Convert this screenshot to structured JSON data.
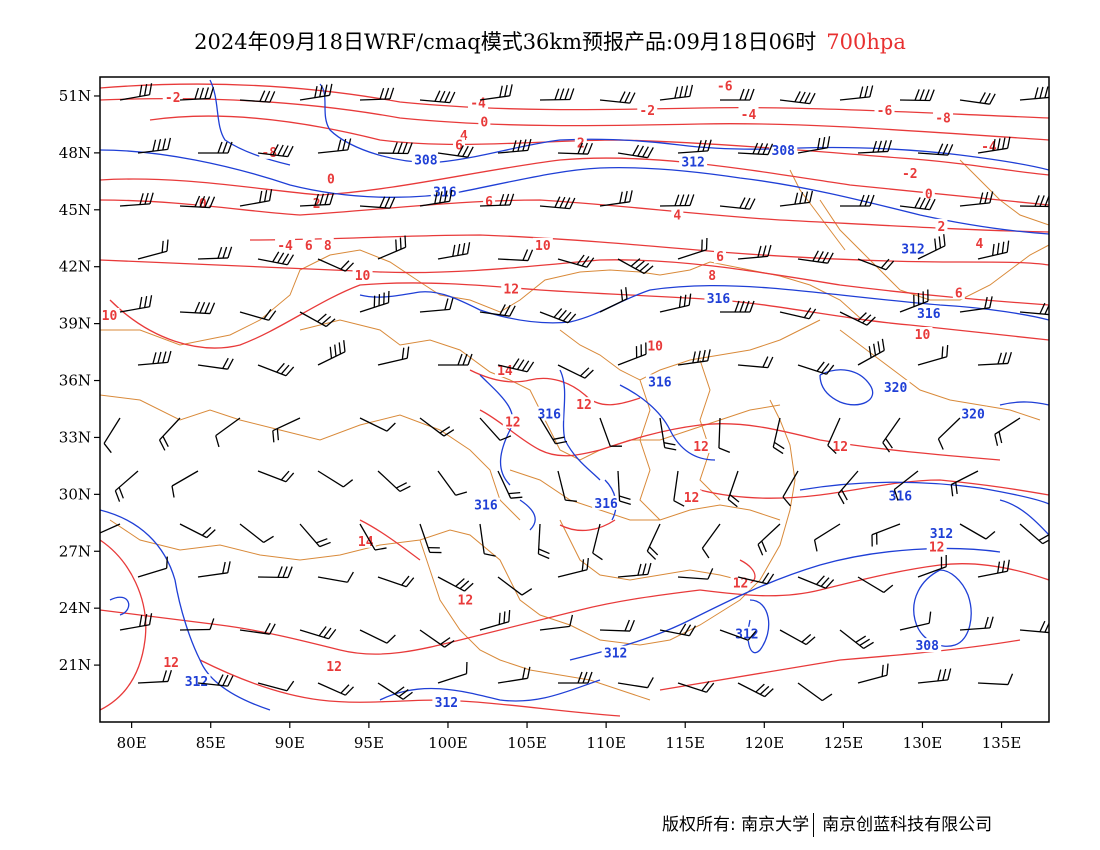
{
  "title": {
    "main": "2024年09月18日WRF/cmaq模式36km预报产品:09月18日06时",
    "level": "700hpa"
  },
  "footer": {
    "copyright": "版权所有: 南京大学",
    "company": "南京创蓝科技有限公司"
  },
  "colors": {
    "temperature_contour": "#e83a3a",
    "geopotential_contour": "#1f3fd6",
    "boundary": "#d98a3a",
    "wind_barb": "#000000",
    "level_label": "#e83030"
  },
  "chart_data": {
    "type": "map",
    "lon_range": [
      78,
      138
    ],
    "lat_range": [
      18,
      52
    ],
    "x_ticks": [
      "80E",
      "85E",
      "90E",
      "95E",
      "100E",
      "105E",
      "110E",
      "115E",
      "120E",
      "125E",
      "130E",
      "135E"
    ],
    "x_tick_values": [
      80,
      85,
      90,
      95,
      100,
      105,
      110,
      115,
      120,
      125,
      130,
      135
    ],
    "y_ticks": [
      "21N",
      "24N",
      "27N",
      "30N",
      "33N",
      "36N",
      "39N",
      "42N",
      "45N",
      "48N",
      "51N"
    ],
    "y_tick_values": [
      21,
      24,
      27,
      30,
      33,
      36,
      39,
      42,
      45,
      48,
      51
    ],
    "temperature_labels": [
      {
        "text": "-2",
        "lon": 82.6,
        "lat": 50.9
      },
      {
        "text": "-4",
        "lon": 101.9,
        "lat": 50.6
      },
      {
        "text": "-6",
        "lon": 117.5,
        "lat": 51.5
      },
      {
        "text": "-2",
        "lon": 112.6,
        "lat": 50.2
      },
      {
        "text": "-4",
        "lon": 119.0,
        "lat": 50.0
      },
      {
        "text": "-6",
        "lon": 127.6,
        "lat": 50.2
      },
      {
        "text": "-8",
        "lon": 131.3,
        "lat": 49.8
      },
      {
        "text": "0",
        "lon": 102.3,
        "lat": 49.6
      },
      {
        "text": "4",
        "lon": 101.0,
        "lat": 48.9
      },
      {
        "text": "6",
        "lon": 100.7,
        "lat": 48.4
      },
      {
        "text": "2",
        "lon": 108.4,
        "lat": 48.5
      },
      {
        "text": "-8",
        "lon": 88.7,
        "lat": 48.0
      },
      {
        "text": "-4",
        "lon": 134.2,
        "lat": 48.3
      },
      {
        "text": "-2",
        "lon": 129.2,
        "lat": 46.9
      },
      {
        "text": "0",
        "lon": 92.6,
        "lat": 46.6
      },
      {
        "text": "0",
        "lon": 84.5,
        "lat": 45.3
      },
      {
        "text": "2",
        "lon": 91.7,
        "lat": 45.3
      },
      {
        "text": "0",
        "lon": 130.4,
        "lat": 45.8
      },
      {
        "text": "6",
        "lon": 102.6,
        "lat": 45.4
      },
      {
        "text": "4",
        "lon": 114.5,
        "lat": 44.7
      },
      {
        "text": "2",
        "lon": 131.2,
        "lat": 44.1
      },
      {
        "text": "-4",
        "lon": 89.7,
        "lat": 43.1
      },
      {
        "text": "6",
        "lon": 91.2,
        "lat": 43.1
      },
      {
        "text": "8",
        "lon": 92.4,
        "lat": 43.1
      },
      {
        "text": "4",
        "lon": 133.6,
        "lat": 43.2
      },
      {
        "text": "10",
        "lon": 106.0,
        "lat": 43.1
      },
      {
        "text": "6",
        "lon": 117.2,
        "lat": 42.5
      },
      {
        "text": "8",
        "lon": 116.7,
        "lat": 41.5
      },
      {
        "text": "10",
        "lon": 94.6,
        "lat": 41.5
      },
      {
        "text": "12",
        "lon": 104.0,
        "lat": 40.8
      },
      {
        "text": "6",
        "lon": 132.3,
        "lat": 40.6
      },
      {
        "text": "10",
        "lon": 78.6,
        "lat": 39.4
      },
      {
        "text": "10",
        "lon": 130.0,
        "lat": 38.4
      },
      {
        "text": "10",
        "lon": 113.1,
        "lat": 37.8
      },
      {
        "text": "14",
        "lon": 103.6,
        "lat": 36.5
      },
      {
        "text": "12",
        "lon": 108.6,
        "lat": 34.7
      },
      {
        "text": "12",
        "lon": 104.1,
        "lat": 33.8
      },
      {
        "text": "12",
        "lon": 116.0,
        "lat": 32.5
      },
      {
        "text": "12",
        "lon": 124.8,
        "lat": 32.5
      },
      {
        "text": "12",
        "lon": 115.4,
        "lat": 29.8
      },
      {
        "text": "14",
        "lon": 94.8,
        "lat": 27.5
      },
      {
        "text": "12",
        "lon": 130.9,
        "lat": 27.2
      },
      {
        "text": "12",
        "lon": 118.5,
        "lat": 25.3
      },
      {
        "text": "12",
        "lon": 101.1,
        "lat": 24.4
      },
      {
        "text": "12",
        "lon": 82.5,
        "lat": 21.1
      },
      {
        "text": "12",
        "lon": 92.8,
        "lat": 20.9
      }
    ],
    "geopotential_labels": [
      {
        "text": "308",
        "lon": 98.6,
        "lat": 47.6
      },
      {
        "text": "316",
        "lon": 99.8,
        "lat": 45.9
      },
      {
        "text": "312",
        "lon": 115.5,
        "lat": 47.5
      },
      {
        "text": "308",
        "lon": 121.2,
        "lat": 48.1
      },
      {
        "text": "312",
        "lon": 129.4,
        "lat": 42.9
      },
      {
        "text": "316",
        "lon": 117.1,
        "lat": 40.3
      },
      {
        "text": "316",
        "lon": 130.4,
        "lat": 39.5
      },
      {
        "text": "316",
        "lon": 113.4,
        "lat": 35.9
      },
      {
        "text": "320",
        "lon": 128.3,
        "lat": 35.6
      },
      {
        "text": "316",
        "lon": 106.4,
        "lat": 34.2
      },
      {
        "text": "320",
        "lon": 133.2,
        "lat": 34.2
      },
      {
        "text": "316",
        "lon": 128.6,
        "lat": 29.9
      },
      {
        "text": "316",
        "lon": 102.4,
        "lat": 29.4
      },
      {
        "text": "316",
        "lon": 110.0,
        "lat": 29.5
      },
      {
        "text": "312",
        "lon": 131.2,
        "lat": 27.9
      },
      {
        "text": "312",
        "lon": 118.9,
        "lat": 22.6
      },
      {
        "text": "308",
        "lon": 130.3,
        "lat": 22.0
      },
      {
        "text": "312",
        "lon": 110.6,
        "lat": 21.6
      },
      {
        "text": "312",
        "lon": 84.1,
        "lat": 20.1
      },
      {
        "text": "312",
        "lon": 99.9,
        "lat": 19.0
      }
    ]
  }
}
